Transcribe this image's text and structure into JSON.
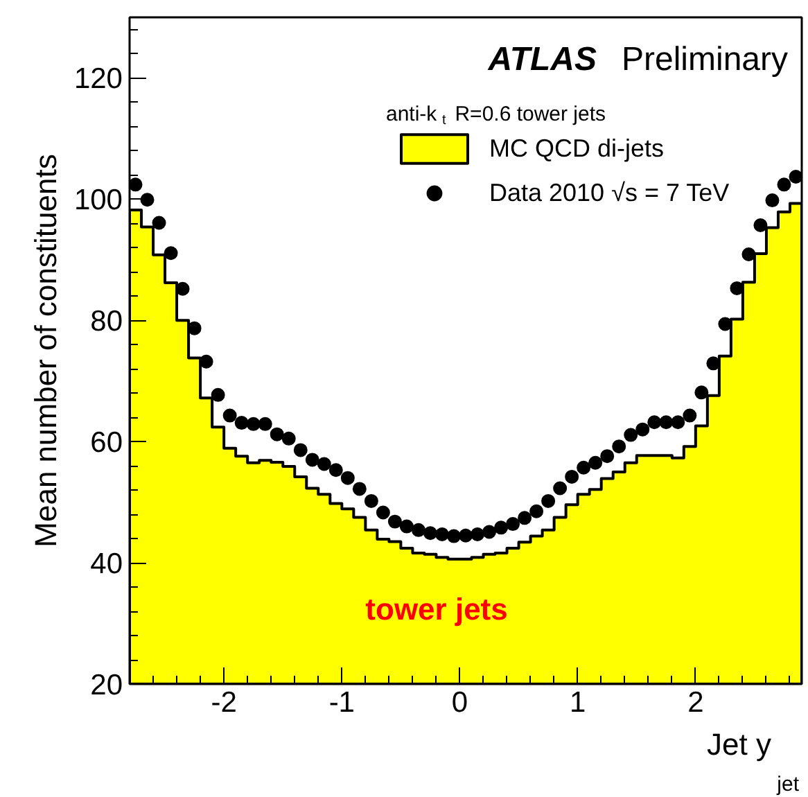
{
  "chart_data": {
    "type": "histogram",
    "xlabel": "Jet y$^{jet}$",
    "ylabel": "Mean number of constituents",
    "annotations": [
      "ATLAS Preliminary",
      "anti-k$_{t}$ R=0.6 tower jets",
      "tower jets"
    ],
    "bins": [
      -2.8,
      -2.7,
      -2.6,
      -2.5,
      -2.4,
      -2.3,
      -2.2,
      -2.1,
      -2.0,
      -1.9,
      -1.8,
      -1.7,
      -1.6,
      -1.5,
      -1.4,
      -1.3,
      -1.2,
      -1.1,
      -1.0,
      -0.9,
      -0.8,
      -0.7,
      -0.6,
      -0.5,
      -0.4,
      -0.3,
      -0.2,
      -0.1,
      0.0,
      0.1,
      0.2,
      0.3,
      0.4,
      0.5,
      0.6,
      0.7,
      0.8,
      0.9,
      1.0,
      1.1,
      1.2,
      1.3,
      1.4,
      1.5,
      1.6,
      1.7,
      1.8,
      1.9,
      2.0,
      2.1,
      2.2,
      2.3,
      2.4,
      2.5,
      2.6,
      2.7,
      2.8,
      2.9
    ],
    "series": [
      {
        "name": "MC QCD di-jets",
        "type": "histogram",
        "color": "#ffff00",
        "values": [
          98.2,
          95.4,
          90.8,
          86.2,
          80.0,
          73.8,
          67.2,
          62.4,
          58.9,
          57.6,
          56.5,
          56.9,
          56.6,
          55.9,
          54.2,
          52.3,
          51.3,
          49.8,
          48.9,
          47.5,
          45.4,
          43.9,
          43.5,
          42.4,
          41.6,
          41.4,
          40.9,
          40.6,
          40.6,
          40.9,
          41.4,
          41.6,
          42.4,
          43.4,
          44.4,
          45.4,
          47.5,
          49.6,
          51.3,
          52.1,
          53.9,
          55.0,
          56.5,
          57.7,
          57.7,
          57.7,
          57.3,
          59.2,
          62.6,
          67.6,
          74.1,
          80.2,
          86.3,
          91.0,
          95.3,
          97.9,
          99.3
        ]
      },
      {
        "name": "Data 2010 √s = 7 TeV",
        "type": "scatter",
        "color": "#000000",
        "marker": "circle",
        "x": [
          -2.75,
          -2.65,
          -2.55,
          -2.45,
          -2.35,
          -2.25,
          -2.15,
          -2.05,
          -1.95,
          -1.85,
          -1.75,
          -1.65,
          -1.55,
          -1.45,
          -1.35,
          -1.25,
          -1.15,
          -1.05,
          -0.95,
          -0.85,
          -0.75,
          -0.65,
          -0.55,
          -0.45,
          -0.35,
          -0.25,
          -0.15,
          -0.05,
          0.05,
          0.15,
          0.25,
          0.35,
          0.45,
          0.55,
          0.65,
          0.75,
          0.85,
          0.95,
          1.05,
          1.15,
          1.25,
          1.35,
          1.45,
          1.55,
          1.65,
          1.75,
          1.85,
          1.95,
          2.05,
          2.15,
          2.25,
          2.35,
          2.45,
          2.55,
          2.65,
          2.75,
          2.85
        ],
        "values": [
          102.4,
          99.9,
          96.1,
          91.1,
          85.2,
          78.7,
          73.2,
          67.7,
          64.3,
          63.1,
          62.9,
          62.9,
          61.2,
          60.5,
          58.6,
          57.0,
          56.3,
          55.3,
          54.0,
          52.2,
          50.2,
          48.3,
          46.8,
          46.0,
          45.4,
          44.9,
          44.7,
          44.4,
          44.5,
          44.7,
          45.1,
          45.8,
          46.4,
          47.4,
          48.5,
          50.2,
          52.3,
          54.2,
          55.7,
          56.5,
          57.6,
          59.2,
          61.1,
          62.0,
          63.2,
          63.2,
          63.2,
          64.3,
          68.1,
          72.9,
          79.4,
          85.3,
          90.9,
          95.7,
          99.8,
          102.4,
          103.7
        ]
      }
    ],
    "xlim": [
      -2.8,
      2.9
    ],
    "xticks": [
      -2,
      -1,
      0,
      1,
      2
    ],
    "ylim": [
      20,
      130
    ],
    "yticks": [
      20,
      40,
      60,
      80,
      100,
      120
    ],
    "grid": false,
    "legend": "top right"
  }
}
